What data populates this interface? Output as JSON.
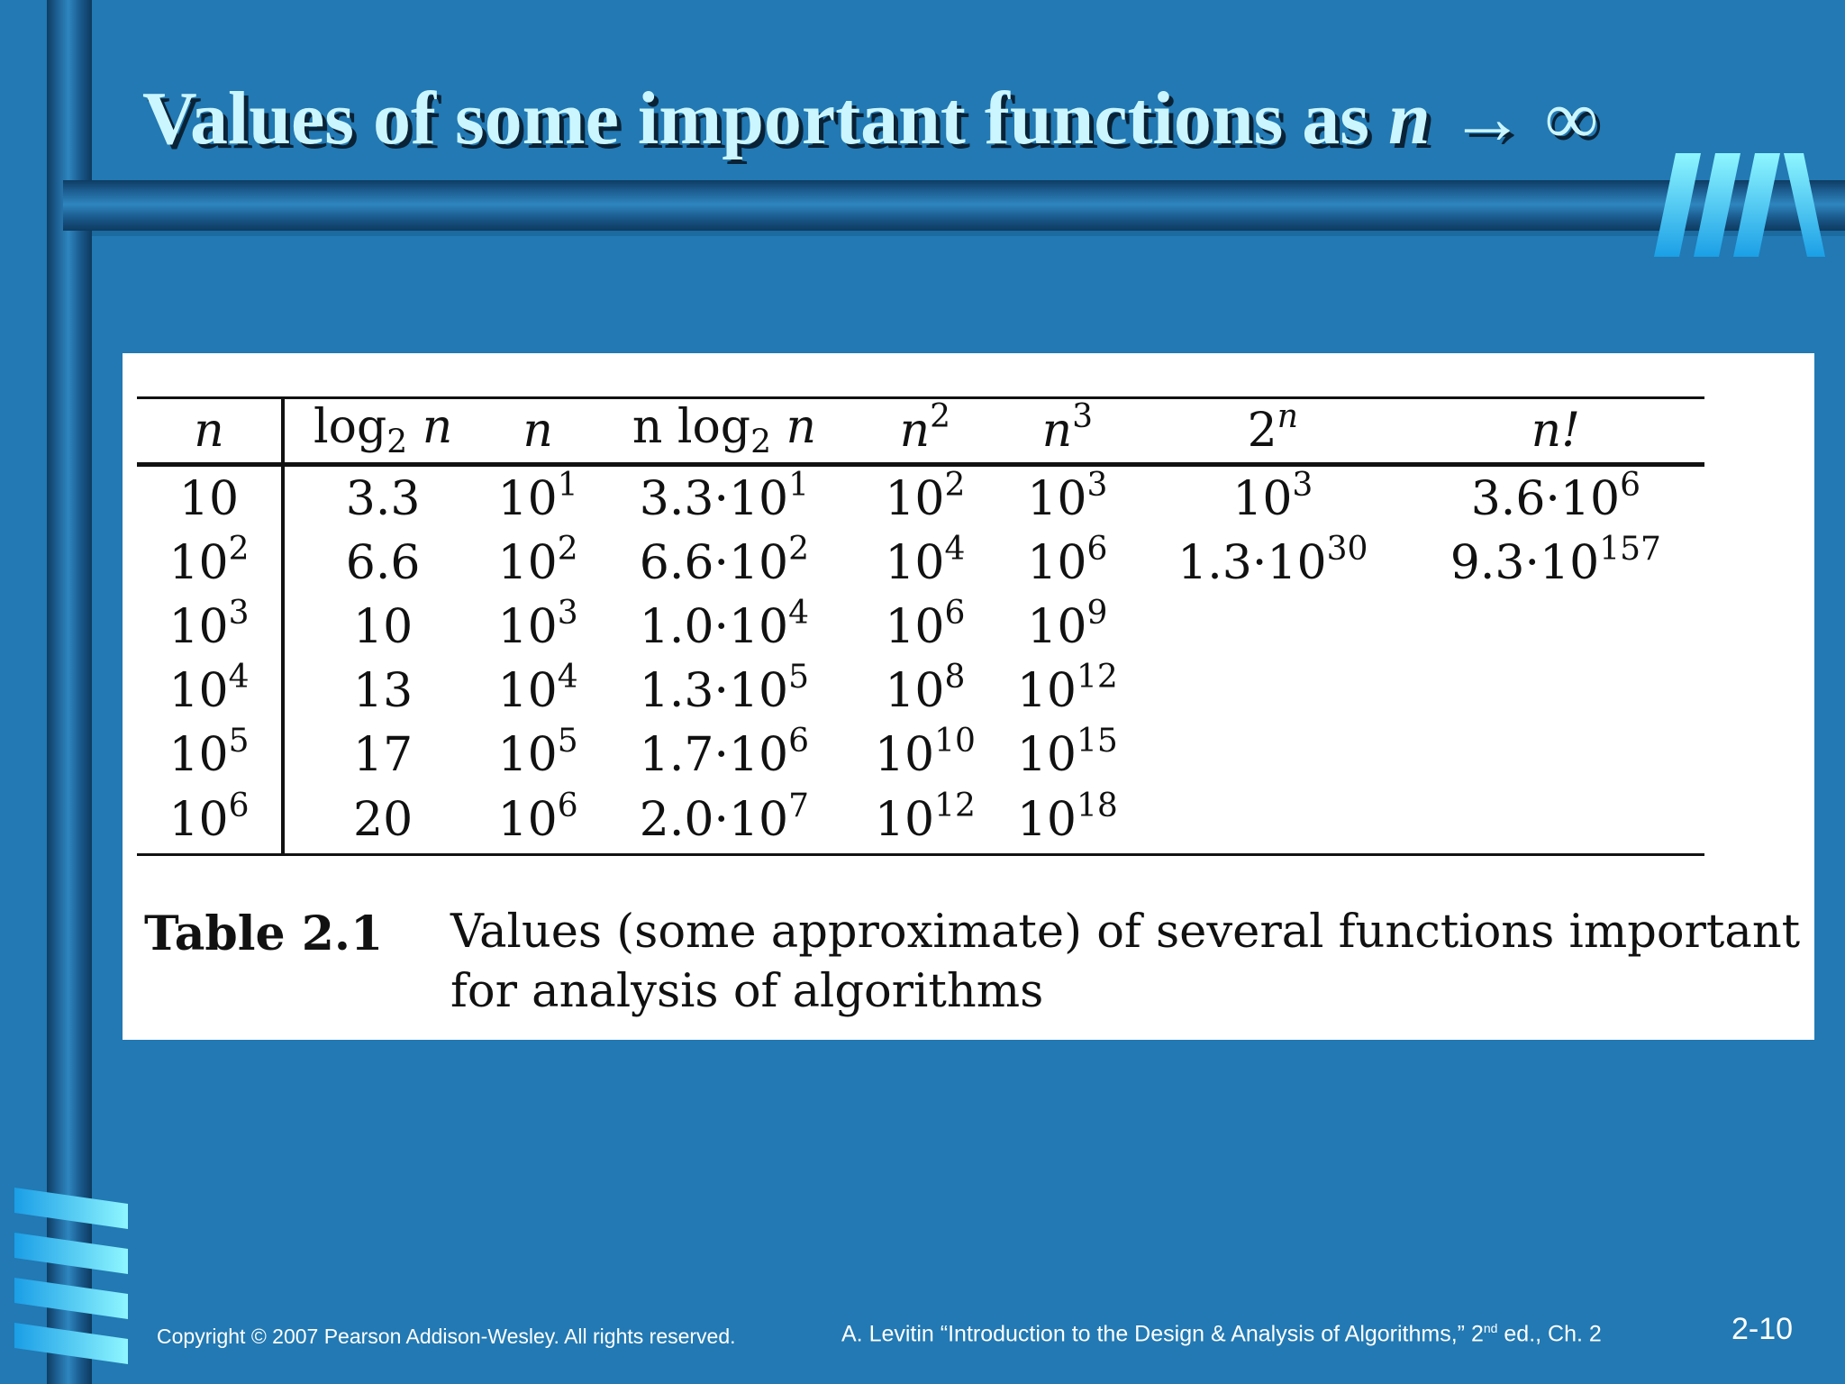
{
  "slide": {
    "title_text": "Values of some important functions as ",
    "title_math": "n → ∞",
    "table": {
      "headers": [
        {
          "base": "n",
          "italic": true
        },
        {
          "pre": "log",
          "sub": "2",
          "post": " n"
        },
        {
          "base": "n",
          "italic": true
        },
        {
          "pre": "n log",
          "sub": "2",
          "post": " n"
        },
        {
          "base": "n",
          "italic": true,
          "sup": "2"
        },
        {
          "base": "n",
          "italic": true,
          "sup": "3"
        },
        {
          "base": "2",
          "sup": "n"
        },
        {
          "base": "n!",
          "italic": true
        }
      ],
      "rows": [
        [
          {
            "b": "10"
          },
          {
            "b": "3.3"
          },
          {
            "b": "10",
            "s": "1"
          },
          {
            "b": "3.3·10",
            "s": "1"
          },
          {
            "b": "10",
            "s": "2"
          },
          {
            "b": "10",
            "s": "3"
          },
          {
            "b": "10",
            "s": "3"
          },
          {
            "b": "3.6·10",
            "s": "6"
          }
        ],
        [
          {
            "b": "10",
            "s": "2"
          },
          {
            "b": "6.6"
          },
          {
            "b": "10",
            "s": "2"
          },
          {
            "b": "6.6·10",
            "s": "2"
          },
          {
            "b": "10",
            "s": "4"
          },
          {
            "b": "10",
            "s": "6"
          },
          {
            "b": "1.3·10",
            "s": "30"
          },
          {
            "b": "9.3·10",
            "s": "157"
          }
        ],
        [
          {
            "b": "10",
            "s": "3"
          },
          {
            "b": "10"
          },
          {
            "b": "10",
            "s": "3"
          },
          {
            "b": "1.0·10",
            "s": "4"
          },
          {
            "b": "10",
            "s": "6"
          },
          {
            "b": "10",
            "s": "9"
          },
          {
            "b": ""
          },
          {
            "b": ""
          }
        ],
        [
          {
            "b": "10",
            "s": "4"
          },
          {
            "b": "13"
          },
          {
            "b": "10",
            "s": "4"
          },
          {
            "b": "1.3·10",
            "s": "5"
          },
          {
            "b": "10",
            "s": "8"
          },
          {
            "b": "10",
            "s": "12"
          },
          {
            "b": ""
          },
          {
            "b": ""
          }
        ],
        [
          {
            "b": "10",
            "s": "5"
          },
          {
            "b": "17"
          },
          {
            "b": "10",
            "s": "5"
          },
          {
            "b": "1.7·10",
            "s": "6"
          },
          {
            "b": "10",
            "s": "10"
          },
          {
            "b": "10",
            "s": "15"
          },
          {
            "b": ""
          },
          {
            "b": ""
          }
        ],
        [
          {
            "b": "10",
            "s": "6"
          },
          {
            "b": "20"
          },
          {
            "b": "10",
            "s": "6"
          },
          {
            "b": "2.0·10",
            "s": "7"
          },
          {
            "b": "10",
            "s": "12"
          },
          {
            "b": "10",
            "s": "18"
          },
          {
            "b": ""
          },
          {
            "b": ""
          }
        ]
      ]
    },
    "caption": {
      "label": "Table 2.1",
      "line1": "Values (some approximate) of several functions important",
      "line2": "for analysis of algorithms"
    },
    "footer": {
      "copyright": "Copyright © 2007 Pearson Addison-Wesley. All rights reserved.",
      "reference_pre": "A. Levitin “Introduction to the Design & Analysis of Algorithms,” 2",
      "reference_sup": "nd",
      "reference_post": " ed., Ch. 2",
      "page": "2-10"
    },
    "colors": {
      "background": "#2279b3",
      "title": "#cbf6ff",
      "accent": "#33d6f5"
    },
    "icons": {
      "logo": "striped-m-logo-icon",
      "corner": "striped-bars-icon"
    }
  }
}
